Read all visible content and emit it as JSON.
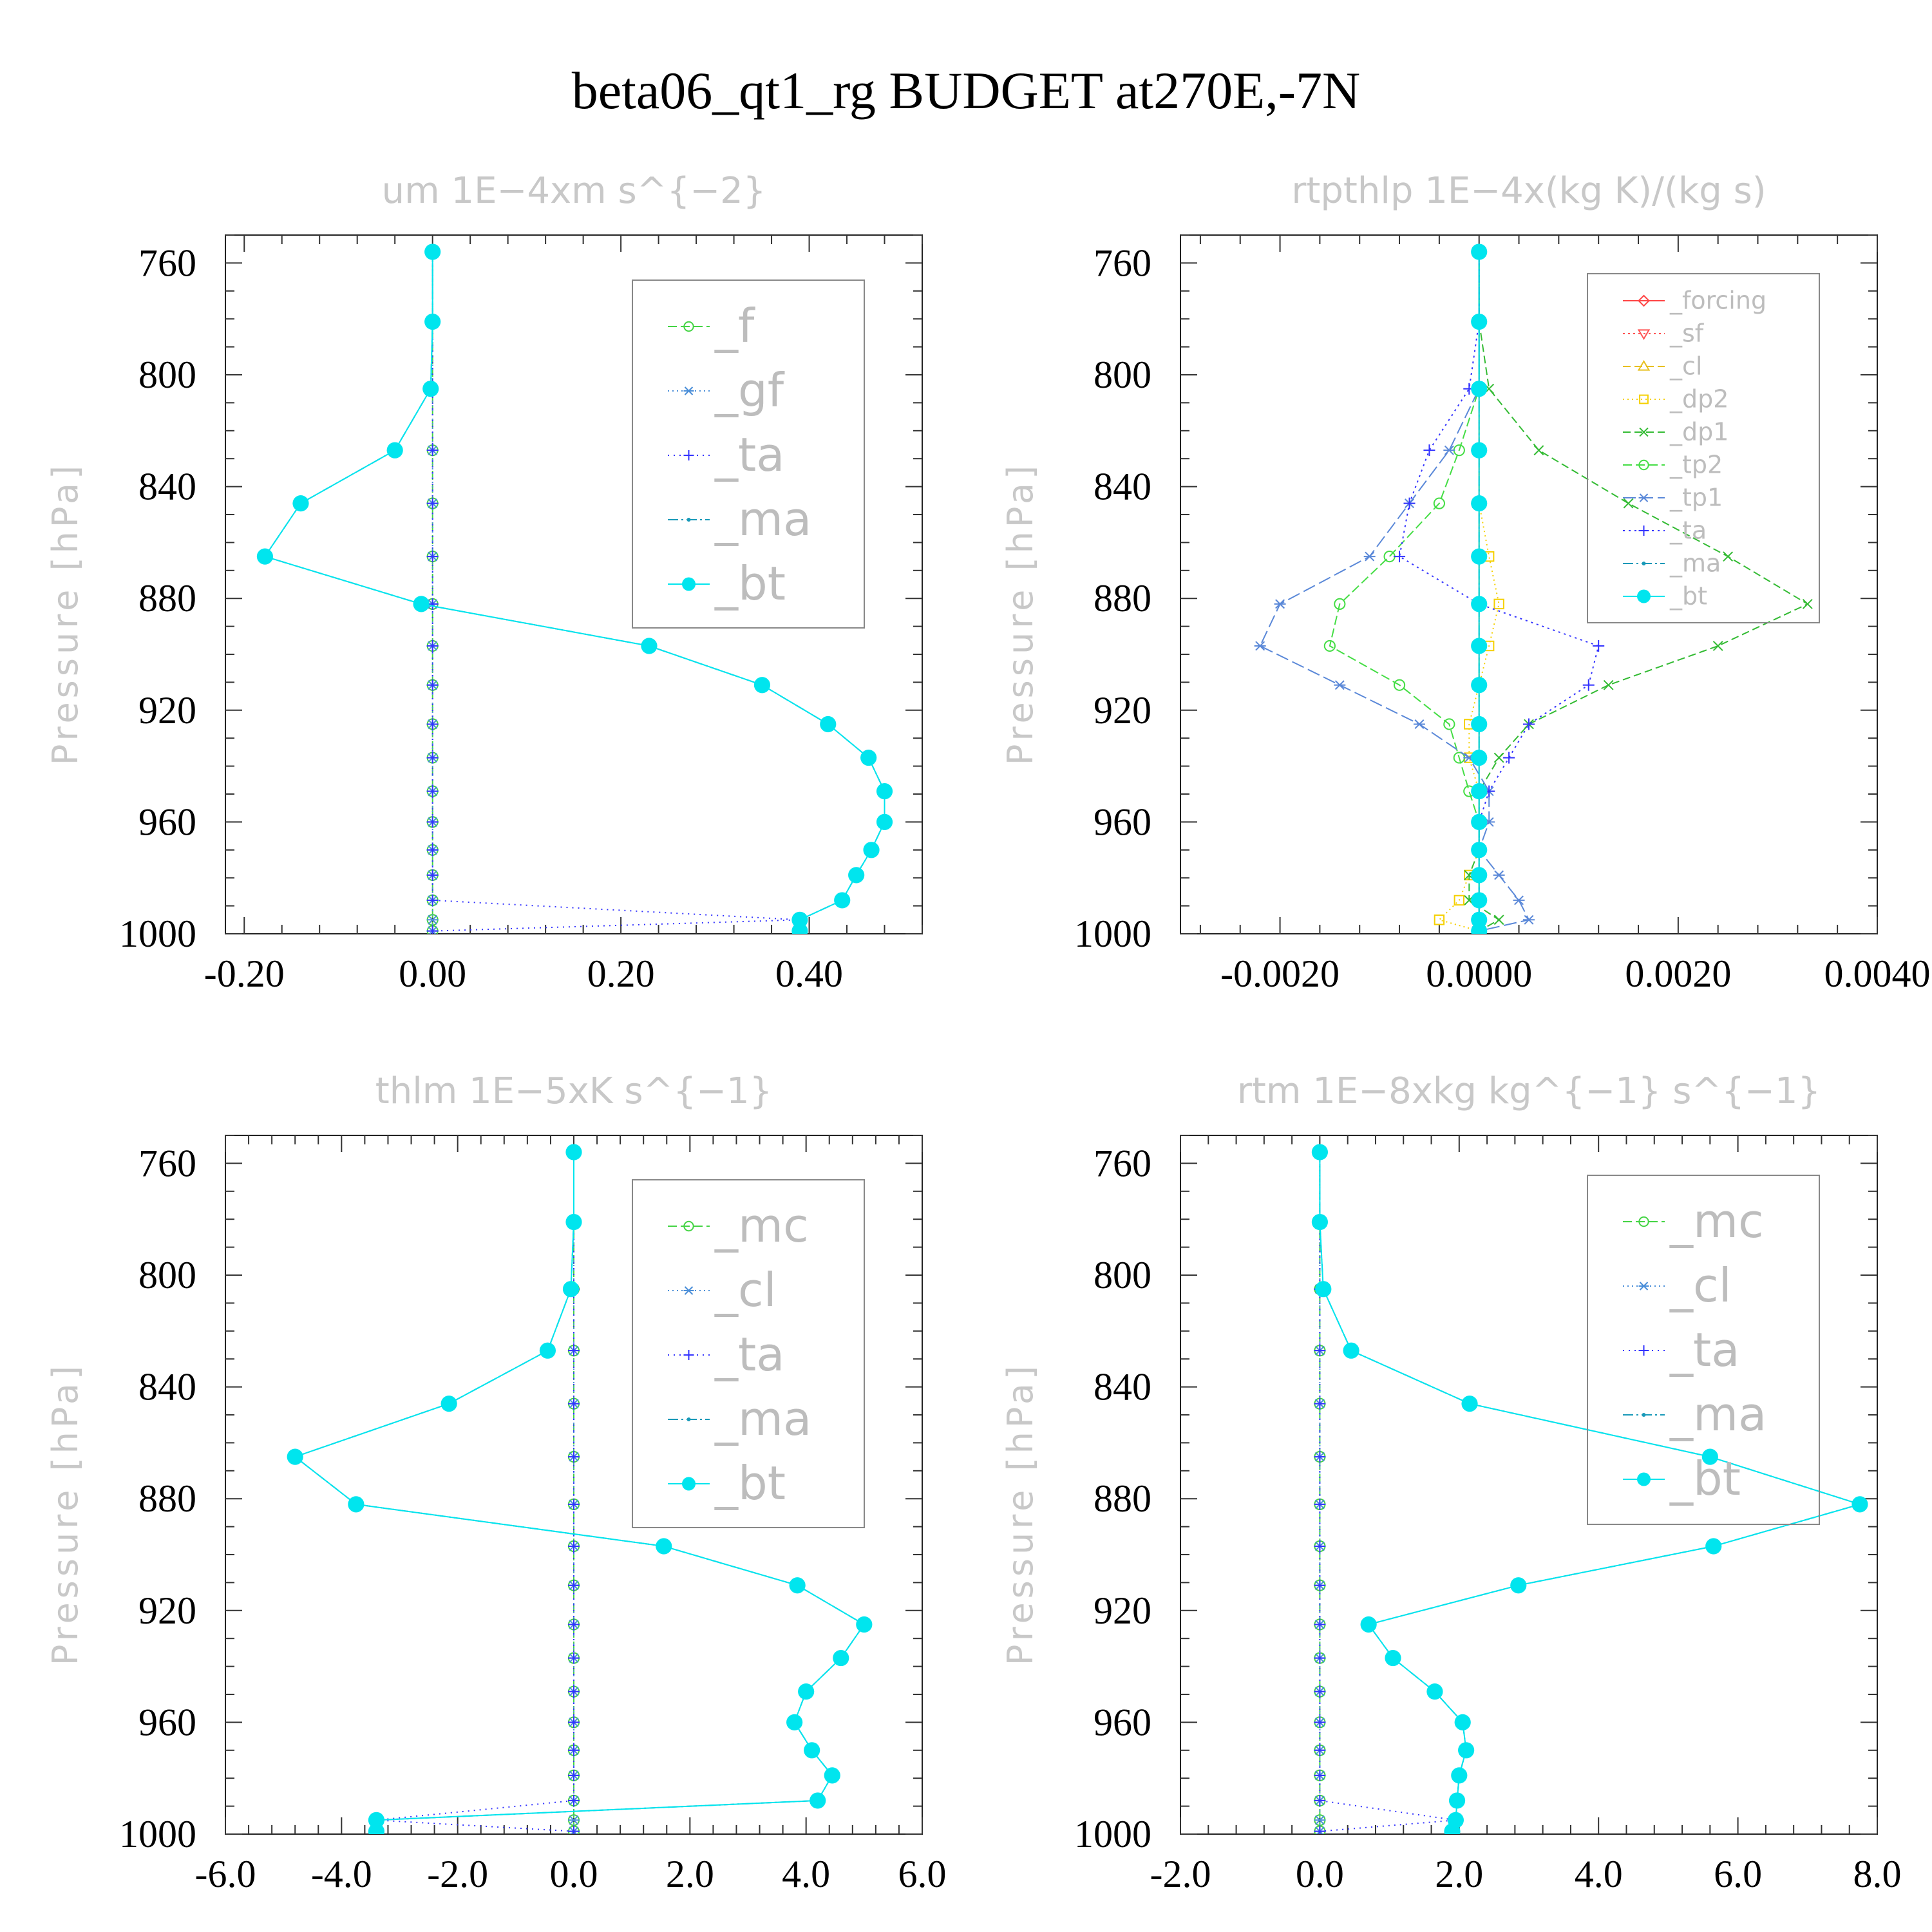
{
  "figure": {
    "title": "beta06_qt1_rg  BUDGET at270E,-7N"
  },
  "chart_data": [
    {
      "type": "line",
      "title": "um   1E−4xm s^{−2}",
      "ylabel": "Pressure [hPa]",
      "xlim": [
        -0.22,
        0.52
      ],
      "ylim": [
        1000,
        750
      ],
      "xticks": [
        -0.2,
        0.0,
        0.2,
        0.4
      ],
      "xtick_labels": [
        "-0.20",
        "0.00",
        "0.20",
        "0.40"
      ],
      "yticks": [
        760,
        800,
        840,
        880,
        920,
        960,
        1000
      ],
      "y": [
        756,
        781,
        805,
        827,
        846,
        865,
        882,
        897,
        911,
        925,
        937,
        949,
        960,
        970,
        979,
        988,
        995,
        999
      ],
      "series": [
        {
          "name": "_f",
          "color": "#44d444",
          "dash": "14,6",
          "marker": "circle-open",
          "values": [
            0,
            0,
            0,
            0,
            0,
            0,
            0,
            0,
            0,
            0,
            0,
            0,
            0,
            0,
            0,
            0,
            0,
            0
          ]
        },
        {
          "name": "_gf",
          "color": "#4a8ed8",
          "dash": "2,5",
          "marker": "star",
          "values": [
            0,
            0,
            0,
            0,
            0,
            0,
            0,
            0,
            0,
            0,
            0,
            0,
            0,
            0,
            0,
            0,
            0,
            0
          ]
        },
        {
          "name": "_ta",
          "color": "#3333ff",
          "dash": "2,7",
          "marker": "plus",
          "values": [
            0,
            0,
            0,
            0,
            0,
            0,
            0,
            0,
            0,
            0,
            0,
            0,
            0,
            0,
            0,
            0,
            0.39,
            0
          ]
        },
        {
          "name": "_ma",
          "color": "#1899b8",
          "dash": "16,5,3,5",
          "marker": "dot",
          "values": [
            0,
            0,
            -0.002,
            -0.04,
            -0.14,
            -0.178,
            -0.012,
            0.23,
            0.35,
            0.42,
            0.463,
            0.48,
            0.48,
            0.466,
            0.45,
            0.435,
            0.39,
            0.39
          ]
        },
        {
          "name": "_bt",
          "color": "#00e5ee",
          "dash": "",
          "marker": "filled",
          "values": [
            0,
            0,
            -0.002,
            -0.04,
            -0.14,
            -0.178,
            -0.012,
            0.23,
            0.35,
            0.42,
            0.463,
            0.48,
            0.48,
            0.466,
            0.45,
            0.435,
            0.39,
            0.39
          ]
        }
      ]
    },
    {
      "type": "line",
      "title": "rtpthlp   1E−4x(kg K)/(kg s)",
      "ylabel": "Pressure [hPa]",
      "xlim": [
        -0.003,
        0.004
      ],
      "ylim": [
        1000,
        750
      ],
      "xticks": [
        -0.002,
        0.0,
        0.002,
        0.004
      ],
      "xtick_labels": [
        "-0.0020",
        "0.0000",
        "0.0020",
        "0.0040"
      ],
      "yticks": [
        760,
        800,
        840,
        880,
        920,
        960,
        1000
      ],
      "y": [
        756,
        781,
        805,
        827,
        846,
        865,
        882,
        897,
        911,
        925,
        937,
        949,
        960,
        970,
        979,
        988,
        995,
        999
      ],
      "series": [
        {
          "name": "_forcing",
          "color": "#ff4444",
          "dash": "",
          "marker": "diamond",
          "values": [
            0,
            0,
            0,
            0,
            0,
            0,
            0,
            0,
            0,
            0,
            0,
            0,
            0,
            0,
            0,
            0,
            0,
            0
          ]
        },
        {
          "name": "_sf",
          "color": "#ff5555",
          "dash": "3,5",
          "marker": "tri-down",
          "values": [
            0,
            0,
            0,
            0,
            0,
            0,
            0,
            0,
            0,
            0,
            0,
            0,
            0,
            0,
            0,
            0,
            0,
            0
          ]
        },
        {
          "name": "_cl",
          "color": "#e8c020",
          "dash": "12,6",
          "marker": "tri-up",
          "values": [
            0,
            0,
            0,
            0,
            0,
            0,
            0,
            0,
            0,
            0,
            0,
            0,
            0,
            0,
            0,
            0,
            0,
            0
          ]
        },
        {
          "name": "_dp2",
          "color": "#f5d000",
          "dash": "2,5",
          "marker": "square",
          "values": [
            0,
            0,
            0,
            0,
            0,
            0.0001,
            0.0002,
            0.0001,
            0,
            -0.0001,
            -0.0001,
            0,
            0,
            0,
            -0.0001,
            -0.0002,
            -0.0004,
            0
          ]
        },
        {
          "name": "_dp1",
          "color": "#33bb33",
          "dash": "12,6",
          "marker": "x",
          "values": [
            0,
            0,
            0.0001,
            0.0006,
            0.0015,
            0.0025,
            0.0033,
            0.0024,
            0.0013,
            0.0005,
            0.0002,
            0,
            0,
            0,
            -0.0001,
            -0.0001,
            0.0002,
            0
          ]
        },
        {
          "name": "_tp2",
          "color": "#44dd44",
          "dash": "14,6",
          "marker": "circle-open",
          "values": [
            0,
            0,
            0,
            -0.0002,
            -0.0004,
            -0.0009,
            -0.0014,
            -0.0015,
            -0.0008,
            -0.0003,
            -0.0002,
            -0.0001,
            0,
            0,
            0,
            0,
            0,
            0
          ]
        },
        {
          "name": "_tp1",
          "color": "#5a88d8",
          "dash": "20,7",
          "marker": "star",
          "values": [
            0,
            0,
            0,
            -0.0003,
            -0.0007,
            -0.0011,
            -0.002,
            -0.0022,
            -0.0014,
            -0.0006,
            -0.0001,
            0.0001,
            0.0001,
            0,
            0.0002,
            0.0004,
            0.0005,
            0
          ]
        },
        {
          "name": "_ta",
          "color": "#3333ff",
          "dash": "3,6",
          "marker": "plus",
          "values": [
            0,
            0,
            -0.0001,
            -0.0005,
            -0.0007,
            -0.0008,
            0,
            0.0012,
            0.0011,
            0.0005,
            0.0003,
            0.0001,
            0,
            0,
            0,
            0,
            0,
            0
          ]
        },
        {
          "name": "_ma",
          "color": "#1899b8",
          "dash": "16,5,3,5",
          "marker": "dot",
          "values": [
            0,
            0,
            0,
            0,
            0,
            0,
            0,
            0,
            0,
            0,
            0,
            0,
            0,
            0,
            0,
            0,
            0,
            0
          ]
        },
        {
          "name": "_bt",
          "color": "#00e5ee",
          "dash": "",
          "marker": "filled",
          "values": [
            0,
            0,
            0,
            0,
            0,
            0,
            0,
            0,
            0,
            0,
            0,
            0,
            0,
            0,
            0,
            0,
            0,
            0
          ]
        }
      ]
    },
    {
      "type": "line",
      "title": "thlm   1E−5xK s^{−1}",
      "ylabel": "Pressure [hPa]",
      "xlim": [
        -6.0,
        6.0
      ],
      "ylim": [
        1000,
        750
      ],
      "xticks": [
        -6.0,
        -4.0,
        -2.0,
        0.0,
        2.0,
        4.0,
        6.0
      ],
      "xtick_labels": [
        "-6.0",
        "-4.0",
        "-2.0",
        "0.0",
        "2.0",
        "4.0",
        "6.0"
      ],
      "yticks": [
        760,
        800,
        840,
        880,
        920,
        960,
        1000
      ],
      "y": [
        756,
        781,
        805,
        827,
        846,
        865,
        882,
        897,
        911,
        925,
        937,
        949,
        960,
        970,
        979,
        988,
        995,
        999
      ],
      "series": [
        {
          "name": "_mc",
          "color": "#44d444",
          "dash": "14,6",
          "marker": "circle-open",
          "values": [
            0,
            0,
            0,
            0,
            0,
            0,
            0,
            0,
            0,
            0,
            0,
            0,
            0,
            0,
            0,
            0,
            0,
            0
          ]
        },
        {
          "name": "_cl",
          "color": "#4a8ed8",
          "dash": "2,5",
          "marker": "star",
          "values": [
            0,
            0,
            0,
            0,
            0,
            0,
            0,
            0,
            0,
            0,
            0,
            0,
            0,
            0,
            0,
            0,
            0,
            0
          ]
        },
        {
          "name": "_ta",
          "color": "#3333ff",
          "dash": "2,7",
          "marker": "plus",
          "values": [
            0,
            0,
            0,
            0,
            0,
            0,
            0,
            0,
            0,
            0,
            0,
            0,
            0,
            0,
            0,
            0,
            -3.4,
            0
          ]
        },
        {
          "name": "_ma",
          "color": "#1899b8",
          "dash": "16,5,3,5",
          "marker": "dot",
          "values": [
            0,
            0,
            -0.05,
            -0.45,
            -2.15,
            -4.8,
            -3.75,
            1.55,
            3.85,
            5.0,
            4.6,
            4.0,
            3.8,
            4.1,
            4.45,
            4.2,
            -3.4,
            -3.4
          ]
        },
        {
          "name": "_bt",
          "color": "#00e5ee",
          "dash": "",
          "marker": "filled",
          "values": [
            0,
            0,
            -0.05,
            -0.45,
            -2.15,
            -4.8,
            -3.75,
            1.55,
            3.85,
            5.0,
            4.6,
            4.0,
            3.8,
            4.1,
            4.45,
            4.2,
            -3.4,
            -3.4
          ]
        }
      ]
    },
    {
      "type": "line",
      "title": "rtm   1E−8xkg kg^{−1} s^{−1}",
      "ylabel": "Pressure [hPa]",
      "xlim": [
        -2.0,
        8.0
      ],
      "ylim": [
        1000,
        750
      ],
      "xticks": [
        -2.0,
        0.0,
        2.0,
        4.0,
        6.0,
        8.0
      ],
      "xtick_labels": [
        "-2.0",
        "0.0",
        "2.0",
        "4.0",
        "6.0",
        "8.0"
      ],
      "yticks": [
        760,
        800,
        840,
        880,
        920,
        960,
        1000
      ],
      "y": [
        756,
        781,
        805,
        827,
        846,
        865,
        882,
        897,
        911,
        925,
        937,
        949,
        960,
        970,
        979,
        988,
        995,
        999
      ],
      "series": [
        {
          "name": "_mc",
          "color": "#44d444",
          "dash": "14,6",
          "marker": "circle-open",
          "values": [
            0,
            0,
            0,
            0,
            0,
            0,
            0,
            0,
            0,
            0,
            0,
            0,
            0,
            0,
            0,
            0,
            0,
            0
          ]
        },
        {
          "name": "_cl",
          "color": "#4a8ed8",
          "dash": "2,5",
          "marker": "star",
          "values": [
            0,
            0,
            0,
            0,
            0,
            0,
            0,
            0,
            0,
            0,
            0,
            0,
            0,
            0,
            0,
            0,
            0,
            0
          ]
        },
        {
          "name": "_ta",
          "color": "#3333ff",
          "dash": "2,7",
          "marker": "plus",
          "values": [
            0,
            0,
            0,
            0,
            0,
            0,
            0,
            0,
            0,
            0,
            0,
            0,
            0,
            0,
            0,
            0,
            1.95,
            0
          ]
        },
        {
          "name": "_ma",
          "color": "#1899b8",
          "dash": "16,5,3,5",
          "marker": "dot",
          "values": [
            0,
            0,
            0.05,
            0.45,
            2.15,
            5.6,
            7.75,
            5.65,
            2.85,
            0.7,
            1.05,
            1.65,
            2.05,
            2.1,
            2.0,
            1.97,
            1.95,
            1.9
          ]
        },
        {
          "name": "_bt",
          "color": "#00e5ee",
          "dash": "",
          "marker": "filled",
          "values": [
            0,
            0,
            0.05,
            0.45,
            2.15,
            5.6,
            7.75,
            5.65,
            2.85,
            0.7,
            1.05,
            1.65,
            2.05,
            2.1,
            2.0,
            1.97,
            1.95,
            1.9
          ]
        }
      ]
    }
  ]
}
